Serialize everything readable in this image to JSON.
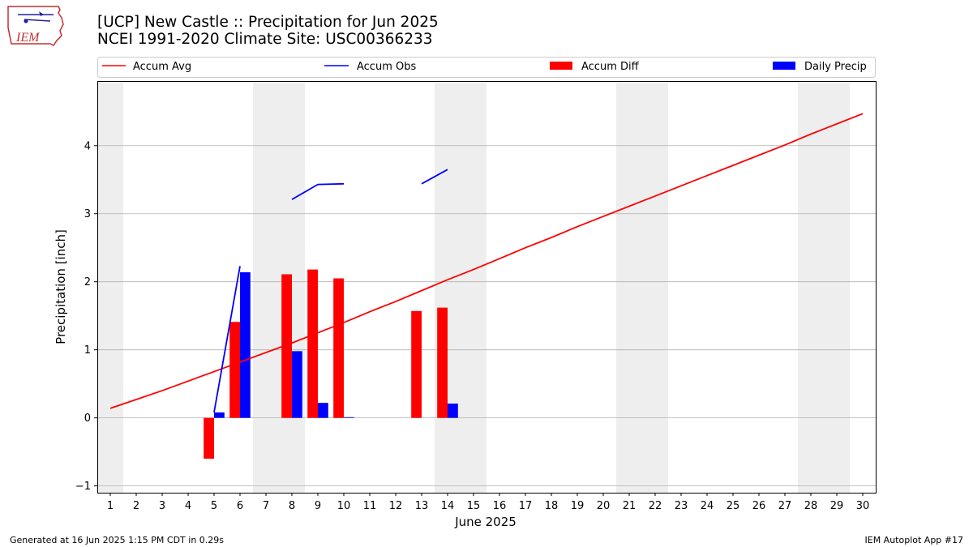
{
  "header": {
    "title": "[UCP] New Castle :: Precipitation for Jun 2025",
    "subtitle": "NCEI 1991-2020 Climate Site: USC00366233",
    "logo_text": "IEM"
  },
  "footer": {
    "generated": "Generated at 16 Jun 2025 1:15 PM CDT in 0.29s",
    "app": "IEM Autoplot App #17"
  },
  "colors": {
    "accum_avg": "#ff0000",
    "accum_obs": "#0000ff",
    "accum_diff": "#ff0000",
    "daily_precip": "#0000ff",
    "weekend_shade": "#eeeeee",
    "grid": "#b0b0b0"
  },
  "chart_data": {
    "type": "bar",
    "xlabel": "June 2025",
    "ylabel": "Precipitation [inch]",
    "xlim": [
      0.5,
      30.5
    ],
    "ylim": [
      -1.1,
      4.95
    ],
    "yticks": [
      -1,
      0,
      1,
      2,
      3,
      4
    ],
    "days": [
      1,
      2,
      3,
      4,
      5,
      6,
      7,
      8,
      9,
      10,
      11,
      12,
      13,
      14,
      15,
      16,
      17,
      18,
      19,
      20,
      21,
      22,
      23,
      24,
      25,
      26,
      27,
      28,
      29,
      30
    ],
    "weekend_days": [
      1,
      7,
      8,
      14,
      15,
      21,
      22,
      28,
      29
    ],
    "legend": [
      "Accum Avg",
      "Accum Obs",
      "Accum Diff",
      "Daily Precip"
    ],
    "legend_position": "top, outside plot",
    "grid": "horizontal",
    "series": [
      {
        "name": "Accum Avg",
        "kind": "line",
        "values": [
          0.14,
          0.27,
          0.4,
          0.54,
          0.68,
          0.82,
          0.96,
          1.1,
          1.25,
          1.4,
          1.56,
          1.71,
          1.87,
          2.03,
          2.18,
          2.34,
          2.5,
          2.65,
          2.81,
          2.96,
          3.11,
          3.26,
          3.41,
          3.56,
          3.71,
          3.86,
          4.01,
          4.17,
          4.32,
          4.47
        ]
      },
      {
        "name": "Accum Obs",
        "kind": "line",
        "values": [
          null,
          null,
          null,
          null,
          0.08,
          2.23,
          null,
          3.21,
          3.43,
          3.44,
          null,
          null,
          3.44,
          3.65,
          null,
          null,
          null,
          null,
          null,
          null,
          null,
          null,
          null,
          null,
          null,
          null,
          null,
          null,
          null,
          null
        ]
      },
      {
        "name": "Accum Diff",
        "kind": "bar",
        "values": [
          null,
          null,
          null,
          null,
          -0.6,
          1.41,
          null,
          2.11,
          2.18,
          2.05,
          null,
          null,
          1.57,
          1.62,
          null,
          null,
          null,
          null,
          null,
          null,
          null,
          null,
          null,
          null,
          null,
          null,
          null,
          null,
          null,
          null
        ]
      },
      {
        "name": "Daily Precip",
        "kind": "bar",
        "values": [
          null,
          null,
          null,
          null,
          0.08,
          2.14,
          null,
          0.98,
          0.22,
          0.01,
          null,
          null,
          null,
          0.21,
          null,
          null,
          null,
          null,
          null,
          null,
          null,
          null,
          null,
          null,
          null,
          null,
          null,
          null,
          null,
          null
        ]
      }
    ]
  }
}
